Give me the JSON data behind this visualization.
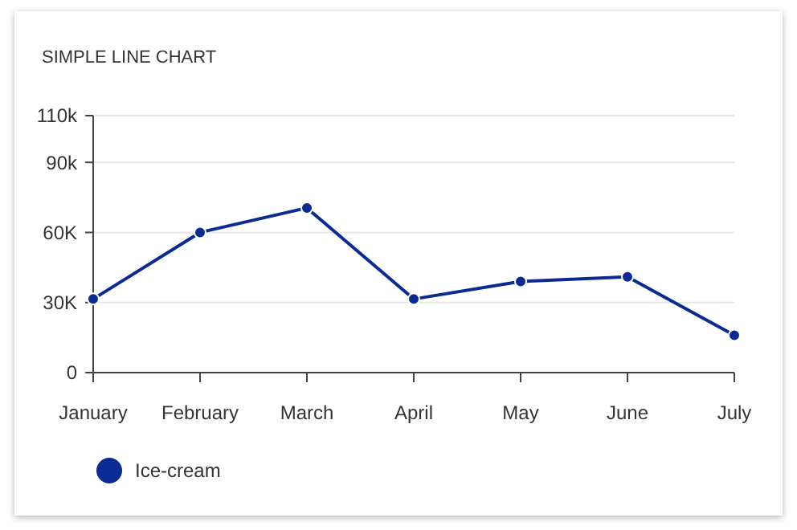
{
  "chart_data": {
    "type": "line",
    "title": "SIMPLE LINE CHART",
    "categories": [
      "January",
      "February",
      "March",
      "April",
      "May",
      "June",
      "July"
    ],
    "series": [
      {
        "name": "Ice-cream",
        "color": "#0a2a94",
        "values": [
          31500,
          60000,
          70500,
          31500,
          39000,
          41000,
          16000
        ]
      }
    ],
    "ylim": [
      0,
      110000
    ],
    "yticks": [
      0,
      {
        "value": 30000,
        "label": "30K"
      },
      {
        "value": 60000,
        "label": "60K"
      },
      {
        "value": 90000,
        "label": "90k"
      },
      {
        "value": 110000,
        "label": "110k"
      }
    ],
    "grid": "y",
    "legend": "bottom left",
    "marker": "circle",
    "line_style": "solid"
  }
}
